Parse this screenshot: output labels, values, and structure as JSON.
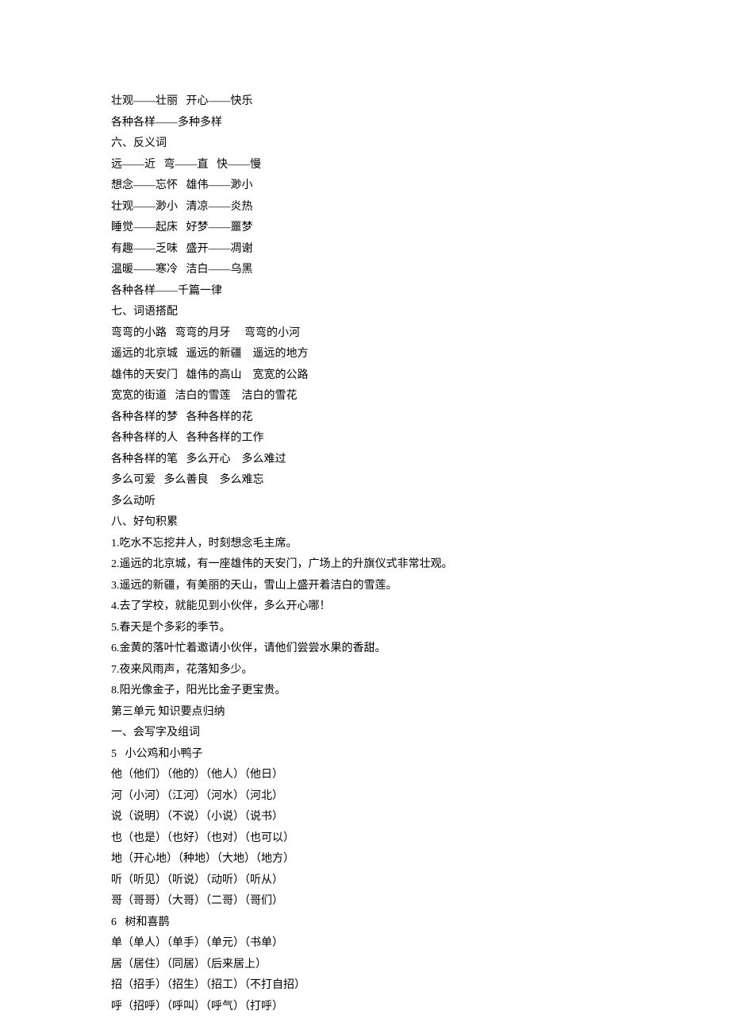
{
  "doc": {
    "background_color": "#ffffff",
    "text_color": "#000000",
    "font_family": "SimSun",
    "font_size": 14,
    "line_height": 26.5
  },
  "lines": [
    "壮观——壮丽   开心——快乐",
    "各种各样——多种多样",
    "六、反义词",
    "远——近   弯——直   快——慢",
    "想念——忘怀   雄伟——渺小",
    "壮观——渺小   清凉——炎热",
    "睡觉——起床   好梦——噩梦",
    "有趣——乏味   盛开——凋谢",
    "温暖——寒冷   洁白——乌黑",
    "各种各样——千篇一律",
    "七、词语搭配",
    "弯弯的小路   弯弯的月牙     弯弯的小河",
    "遥远的北京城   遥远的新疆    遥远的地方",
    "雄伟的天安门   雄伟的高山    宽宽的公路",
    "宽宽的街道   洁白的雪莲    洁白的雪花",
    "各种各样的梦   各种各样的花",
    "各种各样的人   各种各样的工作",
    "各种各样的笔   多么开心    多么难过",
    "多么可爱   多么善良    多么难忘",
    "多么动听",
    "八、好句积累",
    "1.吃水不忘挖井人，时刻想念毛主席。",
    "2.遥远的北京城，有一座雄伟的天安门，广场上的升旗仪式非常壮观。",
    "3.遥远的新疆，有美丽的天山，雪山上盛开着洁白的雪莲。",
    "4.去了学校，就能见到小伙伴，多么开心哪！",
    "5.春天是个多彩的季节。",
    "6.金黄的落叶忙着邀请小伙伴，请他们尝尝水果的香甜。",
    "7.夜来风雨声，花落知多少。",
    "8.阳光像金子，阳光比金子更宝贵。",
    "第三单元 知识要点归纳",
    "一、会写字及组词",
    "5   小公鸡和小鸭子",
    "他（他们）（他的）（他人）（他日）",
    "河（小河）（江河）（河水）（河北）",
    "说（说明）（不说）（小说）（说书）",
    "也（也是）（也好）（也对）（也可以）",
    "地（开心地）（种地）（大地）（地方）",
    "听（听见）（听说）（动听）（听从）",
    "哥（哥哥）（大哥）（二哥）（哥们）",
    "6   树和喜鹊",
    "单（单人）（单手）（单元）（书单）",
    "居（居住）（同居）（后来居上）",
    "招（招手）（招生）（招工）（不打自招）",
    "呼（招呼）（呼叫）（呼气）（打呼）"
  ]
}
